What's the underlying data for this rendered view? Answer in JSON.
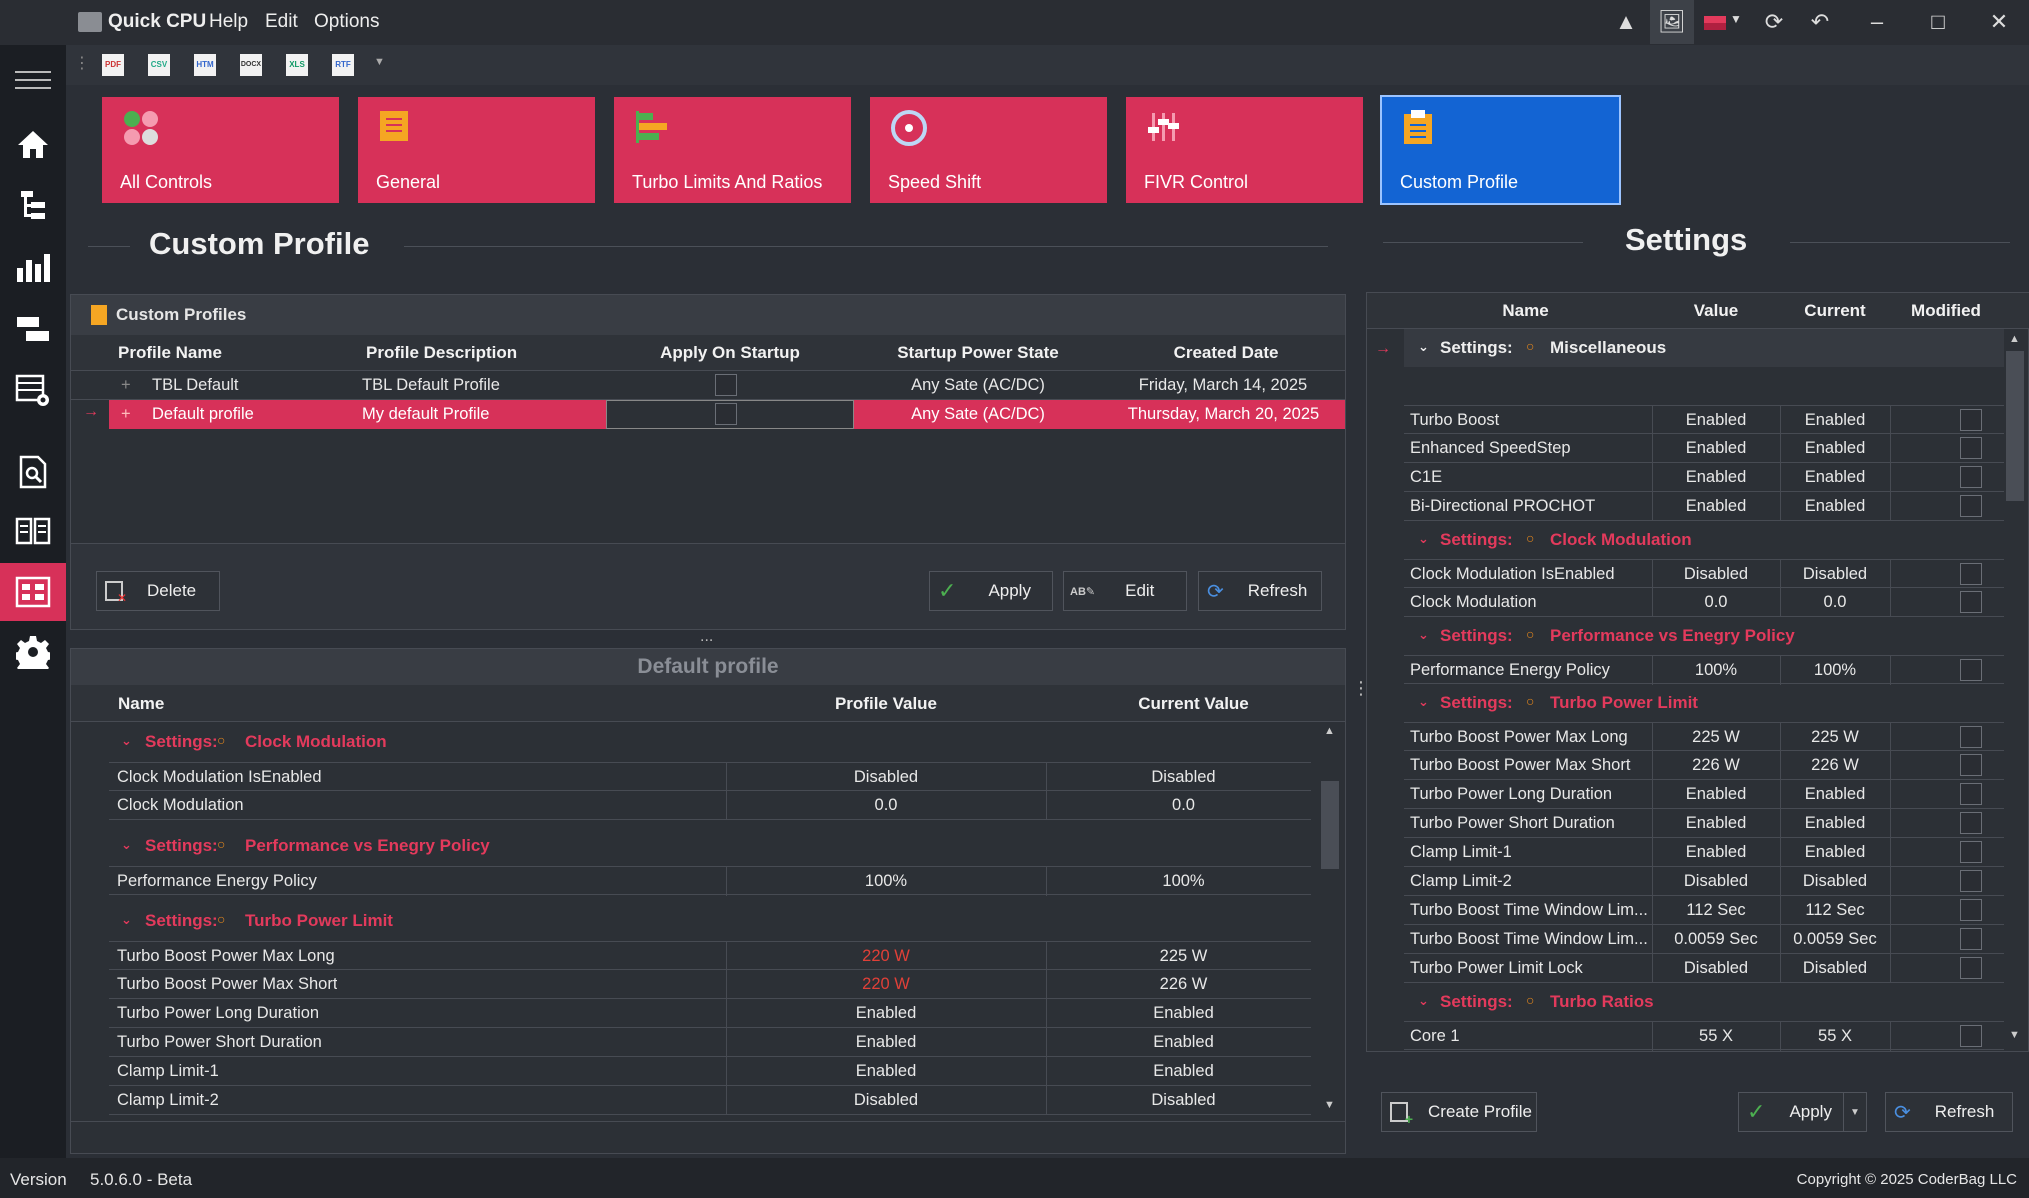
{
  "app": {
    "title": "Quick CPU",
    "menu": [
      "Help",
      "Edit",
      "Options"
    ]
  },
  "toolbar": {
    "exports": [
      "PDF",
      "CSV",
      "HTM",
      "DOCX",
      "XLS",
      "RTF"
    ]
  },
  "tiles": [
    {
      "label": "All Controls"
    },
    {
      "label": "General"
    },
    {
      "label": "Turbo Limits And Ratios"
    },
    {
      "label": "Speed Shift"
    },
    {
      "label": "FIVR Control"
    },
    {
      "label": "Custom Profile"
    }
  ],
  "left": {
    "heading": "Custom Profile",
    "profiles_title": "Custom Profiles",
    "columns": [
      "Profile Name",
      "Profile Description",
      "Apply On Startup",
      "Startup Power State",
      "Created Date"
    ],
    "rows": [
      {
        "name": "TBL Default",
        "desc": "TBL Default Profile",
        "state": "Any Sate (AC/DC)",
        "date": "Friday, March 14, 2025"
      },
      {
        "name": "Default profile",
        "desc": "My default  Profile",
        "state": "Any Sate (AC/DC)",
        "date": "Thursday, March 20, 2025"
      }
    ],
    "buttons": {
      "delete": "Delete",
      "apply": "Apply",
      "edit": "Edit",
      "refresh": "Refresh"
    },
    "splitter": "...",
    "detail_title": "Default profile",
    "detail_columns": [
      "Name",
      "Profile Value",
      "Current Value"
    ],
    "groups": [
      {
        "prefix": "Settings:",
        "name": "Clock Modulation",
        "rows": [
          {
            "name": "Clock Modulation IsEnabled",
            "profile": "Disabled",
            "current": "Disabled"
          },
          {
            "name": "Clock Modulation",
            "profile": "0.0",
            "current": "0.0"
          }
        ]
      },
      {
        "prefix": "Settings:",
        "name": "Performance vs Enegry Policy",
        "rows": [
          {
            "name": "Performance Energy Policy",
            "profile": "100%",
            "current": "100%"
          }
        ]
      },
      {
        "prefix": "Settings:",
        "name": "Turbo Power Limit",
        "rows": [
          {
            "name": "Turbo Boost Power Max Long",
            "profile": "220 W",
            "current": "225 W"
          },
          {
            "name": "Turbo Boost Power Max Short",
            "profile": "220 W",
            "current": "226 W"
          },
          {
            "name": "Turbo Power Long Duration",
            "profile": "Enabled",
            "current": "Enabled"
          },
          {
            "name": "Turbo Power Short Duration",
            "profile": "Enabled",
            "current": "Enabled"
          },
          {
            "name": "Clamp Limit-1",
            "profile": "Enabled",
            "current": "Enabled"
          },
          {
            "name": "Clamp Limit-2",
            "profile": "Disabled",
            "current": "Disabled"
          }
        ]
      }
    ]
  },
  "right": {
    "heading": "Settings",
    "columns": [
      "Name",
      "Value",
      "Current",
      "Modified"
    ],
    "groups": [
      {
        "prefix": "Settings:",
        "name": "Miscellaneous",
        "rows": [
          {
            "name": "Turbo Boost",
            "value": "Enabled",
            "current": "Enabled"
          },
          {
            "name": "Enhanced SpeedStep",
            "value": "Enabled",
            "current": "Enabled"
          },
          {
            "name": "C1E",
            "value": "Enabled",
            "current": "Enabled"
          },
          {
            "name": "Bi-Directional PROCHOT",
            "value": "Enabled",
            "current": "Enabled"
          }
        ]
      },
      {
        "prefix": "Settings:",
        "name": "Clock Modulation",
        "rows": [
          {
            "name": "Clock Modulation IsEnabled",
            "value": "Disabled",
            "current": "Disabled"
          },
          {
            "name": "Clock Modulation",
            "value": "0.0",
            "current": "0.0"
          }
        ]
      },
      {
        "prefix": "Settings:",
        "name": "Performance vs Enegry Policy",
        "rows": [
          {
            "name": "Performance Energy Policy",
            "value": "100%",
            "current": "100%"
          }
        ]
      },
      {
        "prefix": "Settings:",
        "name": "Turbo Power Limit",
        "rows": [
          {
            "name": "Turbo Boost Power Max Long",
            "value": "225 W",
            "current": "225 W"
          },
          {
            "name": "Turbo Boost Power Max Short",
            "value": "226 W",
            "current": "226 W"
          },
          {
            "name": "Turbo Power Long Duration",
            "value": "Enabled",
            "current": "Enabled"
          },
          {
            "name": "Turbo Power Short Duration",
            "value": "Enabled",
            "current": "Enabled"
          },
          {
            "name": "Clamp Limit-1",
            "value": "Enabled",
            "current": "Enabled"
          },
          {
            "name": "Clamp Limit-2",
            "value": "Disabled",
            "current": "Disabled"
          },
          {
            "name": "Turbo Boost Time Window Lim...",
            "value": "112 Sec",
            "current": "112 Sec"
          },
          {
            "name": "Turbo Boost Time Window Lim...",
            "value": "0.0059 Sec",
            "current": "0.0059 Sec"
          },
          {
            "name": "Turbo Power Limit Lock",
            "value": "Disabled",
            "current": "Disabled"
          }
        ]
      },
      {
        "prefix": "Settings:",
        "name": "Turbo Ratios",
        "rows": [
          {
            "name": "Core 1",
            "value": "55 X",
            "current": "55 X"
          }
        ]
      }
    ],
    "buttons": {
      "create": "Create Profile",
      "apply": "Apply",
      "refresh": "Refresh"
    }
  },
  "status": {
    "version_label": "Version",
    "version": "5.0.6.0 - Beta",
    "copyright": "Copyright © 2025 CoderBag LLC"
  },
  "colors": {
    "tile": "#d73159",
    "tile_selected": "#1364d3",
    "accent_red": "#e33a5c",
    "accent_orange": "#e8891c"
  }
}
